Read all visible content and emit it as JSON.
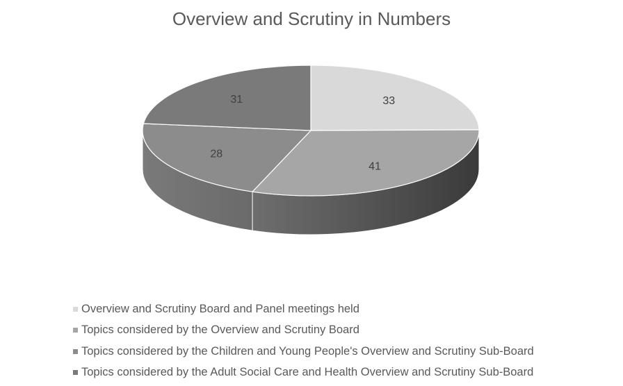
{
  "chart_data": {
    "type": "pie",
    "title": "Overview and Scrutiny in Numbers",
    "categories": [
      "Overview and Scrutiny Board and Panel meetings held",
      "Topics considered by the Overview and Scrutiny Board",
      "Topics considered by the Children and Young People's Overview and Scrutiny Sub-Board",
      "Topics considered by the Adult Social Care and Health Overview and Scrutiny Sub-Board"
    ],
    "values": [
      33,
      41,
      28,
      31
    ],
    "data_labels": [
      "33",
      "41",
      "28",
      "31"
    ],
    "colors": [
      "#d9d9d9",
      "#a6a6a6",
      "#8c8c8c",
      "#7a7a7a"
    ],
    "style": "3d",
    "legend_position": "bottom"
  }
}
